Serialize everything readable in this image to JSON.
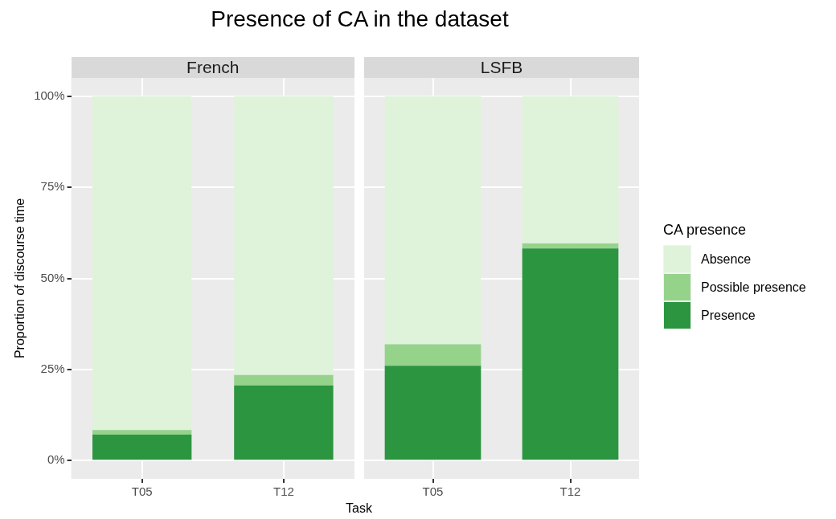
{
  "chart_data": [
    {
      "type": "bar",
      "title": "Presence of CA in the dataset",
      "subtitle": "French",
      "xlabel": "Task",
      "ylabel": "Proportion of discourse time",
      "categories": [
        "T05",
        "T12"
      ],
      "stacked": true,
      "series": [
        {
          "color": "#2b9540",
          "values": [
            7.1,
            20.6
          ]
        },
        {
          "color": "#95d38b",
          "values": [
            1.3,
            2.9
          ]
        },
        {
          "color": "#dff2da",
          "values": [
            91.6,
            76.5
          ]
        }
      ],
      "ylim": [
        -5,
        105
      ],
      "yticks": [
        {
          "value": 0,
          "label": "0%"
        },
        {
          "value": 25,
          "label": "25%"
        },
        {
          "value": 50,
          "label": "50%"
        },
        {
          "value": 75,
          "label": "75%"
        },
        {
          "value": 100,
          "label": "100%"
        }
      ],
      "grid": true
    },
    {
      "type": "bar",
      "subtitle": "LSFB",
      "categories": [
        "T05",
        "T12"
      ],
      "stacked": true,
      "series": [
        {
          "name": "Presence",
          "color": "#2b9540",
          "values": [
            26.0,
            58.2
          ]
        },
        {
          "name": "Possible presence",
          "color": "#95d38b",
          "values": [
            5.9,
            1.4
          ]
        },
        {
          "name": "Absence",
          "color": "#dff2da",
          "values": [
            68.1,
            40.4
          ]
        }
      ],
      "ylim": [
        -5,
        105
      ],
      "yticks": [
        0,
        25,
        50,
        75,
        100
      ],
      "grid": true,
      "legend": "right",
      "legend_title": "CA presence",
      "tick_labels": "x"
    }
  ]
}
